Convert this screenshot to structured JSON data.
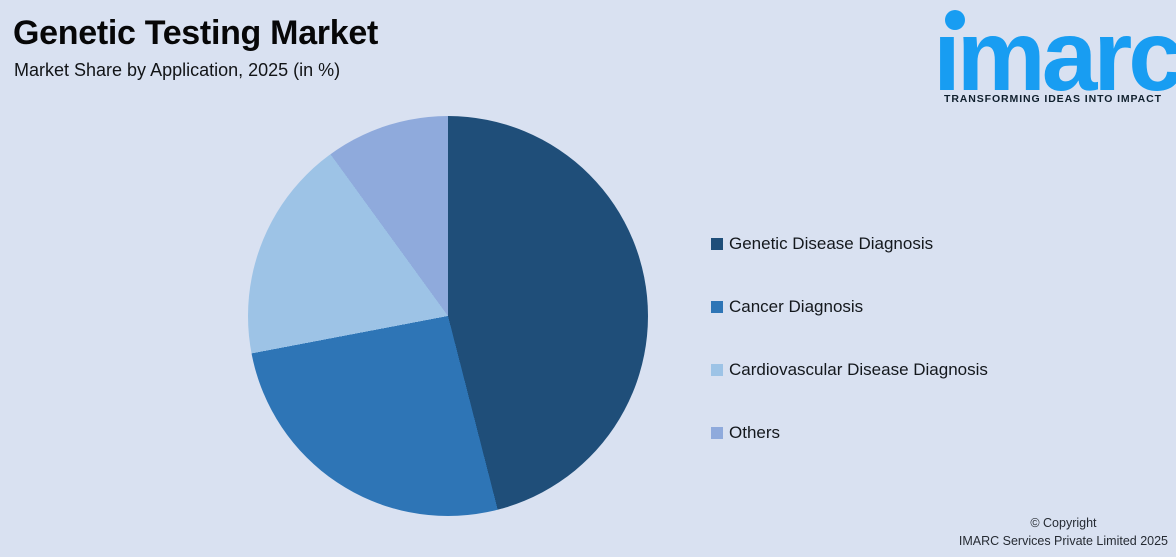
{
  "header": {
    "title": "Genetic Testing Market",
    "subtitle": "Market Share by Application, 2025 (in %)"
  },
  "logo": {
    "wordmark": "imarc",
    "tagline": "TRANSFORMING IDEAS INTO IMPACT",
    "brand_color": "#189df2",
    "dot_icon": "circle-dot"
  },
  "chart_data": {
    "type": "pie",
    "title": "Genetic Testing Market",
    "subtitle": "Market Share by Application, 2025 (in %)",
    "unit": "%",
    "start_angle_deg": 0,
    "direction": "clockwise",
    "data_labels_shown": false,
    "values_estimated_from_angles": true,
    "legend_position": "right",
    "slices": [
      {
        "label": "Genetic Disease Diagnosis",
        "value": 46,
        "color": "#1f4e79"
      },
      {
        "label": "Cancer Diagnosis",
        "value": 26,
        "color": "#2e75b6"
      },
      {
        "label": "Cardiovascular Disease Diagnosis",
        "value": 18,
        "color": "#9dc3e6"
      },
      {
        "label": "Others",
        "value": 10,
        "color": "#8faadc"
      }
    ]
  },
  "footer": {
    "copyright_line1": "© Copyright",
    "copyright_line2": "IMARC Services Private Limited 2025"
  },
  "colors": {
    "background": "#d9e1f1",
    "title_text": "#070708",
    "legend_text": "#14181d",
    "footer_text": "#262b33",
    "tagline_text": "#10202e"
  }
}
